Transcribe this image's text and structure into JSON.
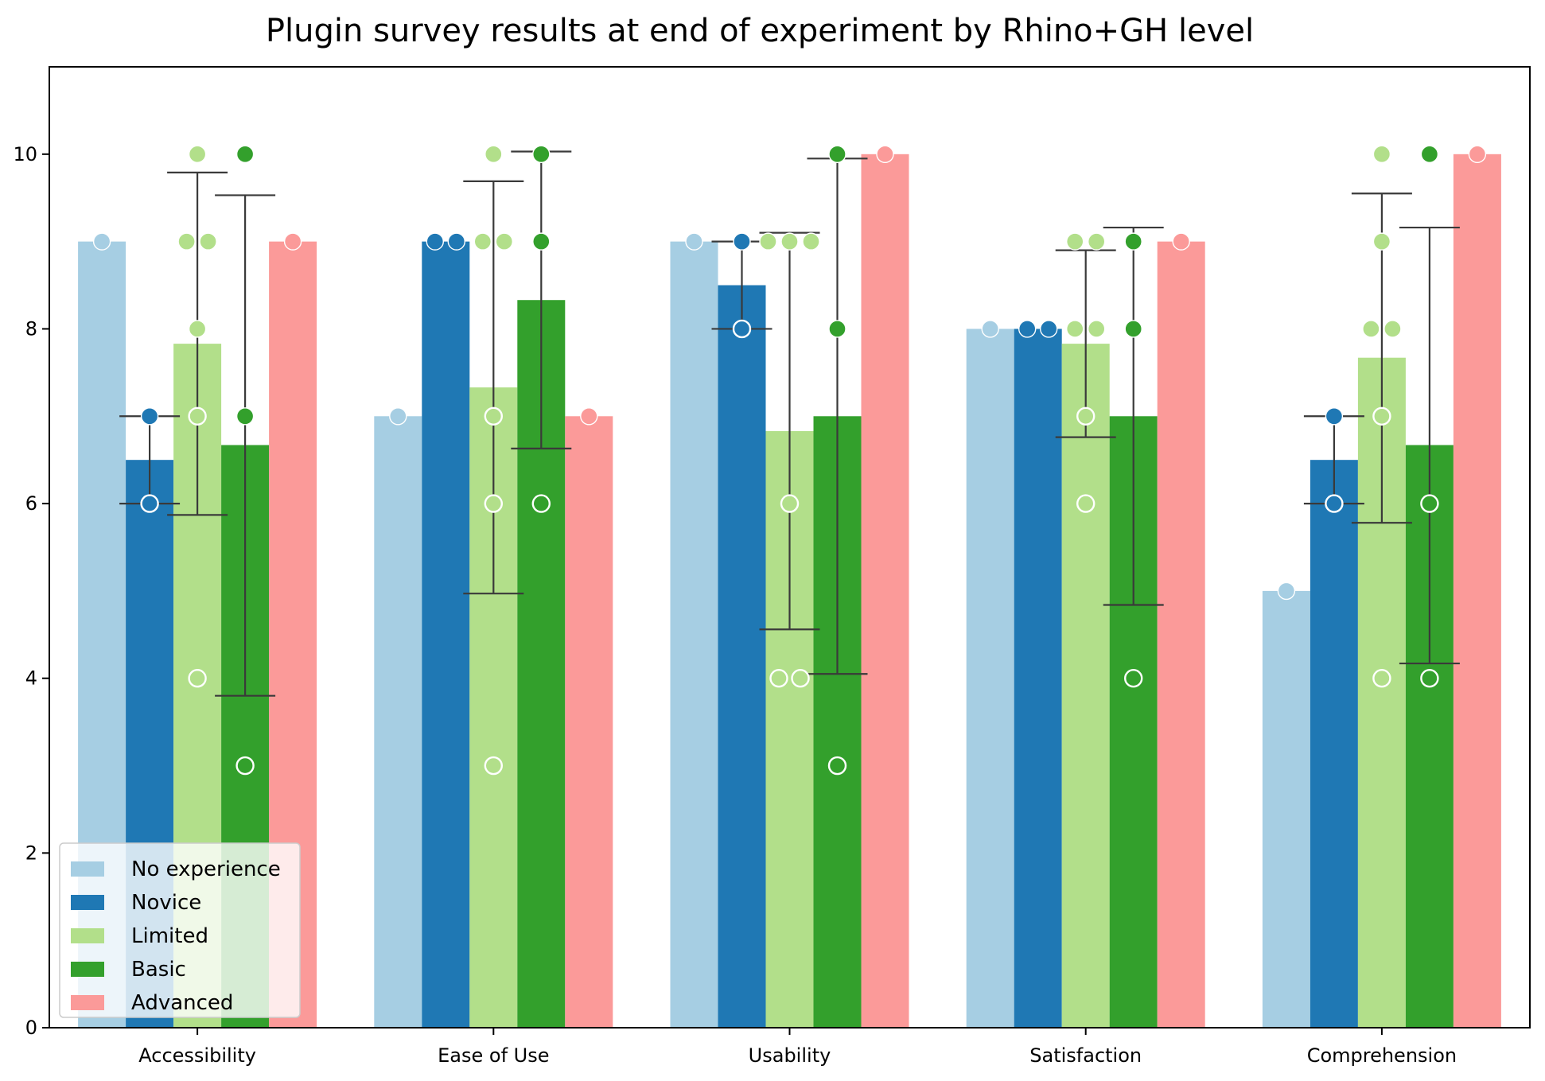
{
  "chart_data": {
    "type": "bar",
    "title": "Plugin survey results at end of experiment by Rhino+GH level",
    "xlabel": "",
    "ylabel": "",
    "ylim": [
      0,
      11
    ],
    "yticks": [
      0,
      2,
      4,
      6,
      8,
      10
    ],
    "grid": false,
    "legend_position": "lower-left",
    "categories": [
      "Accessibility",
      "Ease of Use",
      "Usability",
      "Satisfaction",
      "Comprehension"
    ],
    "series": [
      {
        "name": "No experience",
        "color": "#a6cee3",
        "values": [
          9,
          7,
          9,
          8,
          5
        ],
        "error_bars": [
          null,
          null,
          null,
          null,
          null
        ],
        "points": [
          [
            9
          ],
          [
            7
          ],
          [
            9
          ],
          [
            8
          ],
          [
            5
          ]
        ]
      },
      {
        "name": "Novice",
        "color": "#1f78b4",
        "values": [
          6.5,
          9,
          8.5,
          8,
          6.5
        ],
        "error_bars": [
          [
            6,
            7
          ],
          null,
          [
            8,
            9
          ],
          null,
          [
            6,
            7
          ]
        ],
        "points": [
          [
            7,
            6
          ],
          [
            9,
            9
          ],
          [
            9,
            8
          ],
          [
            8,
            8
          ],
          [
            7,
            6
          ]
        ]
      },
      {
        "name": "Limited",
        "color": "#b2df8a",
        "values": [
          7.83,
          7.33,
          6.83,
          7.83,
          7.67
        ],
        "error_bars": [
          [
            5.87,
            9.79
          ],
          [
            4.97,
            9.69
          ],
          [
            4.56,
            9.1
          ],
          [
            6.76,
            8.9
          ],
          [
            5.78,
            9.55
          ]
        ],
        "points": [
          [
            10,
            9,
            9,
            8,
            7,
            4
          ],
          [
            10,
            9,
            9,
            7,
            6,
            3
          ],
          [
            9,
            9,
            9,
            6,
            4,
            4
          ],
          [
            9,
            9,
            8,
            8,
            7,
            6
          ],
          [
            10,
            9,
            8,
            8,
            7,
            4
          ]
        ]
      },
      {
        "name": "Basic",
        "color": "#33a02c",
        "values": [
          6.67,
          8.33,
          7,
          7,
          6.67
        ],
        "error_bars": [
          [
            3.8,
            9.53
          ],
          [
            6.63,
            10.03
          ],
          [
            4.05,
            9.95
          ],
          [
            4.84,
            9.16
          ],
          [
            4.17,
            9.16
          ]
        ],
        "points": [
          [
            10,
            7,
            3
          ],
          [
            10,
            9,
            6
          ],
          [
            10,
            8,
            3
          ],
          [
            9,
            8,
            4
          ],
          [
            10,
            6,
            4
          ]
        ]
      },
      {
        "name": "Advanced",
        "color": "#fb9a99",
        "values": [
          9,
          7,
          10,
          9,
          10
        ],
        "error_bars": [
          null,
          null,
          null,
          null,
          null
        ],
        "points": [
          [
            9
          ],
          [
            7
          ],
          [
            10
          ],
          [
            9
          ],
          [
            10
          ]
        ]
      }
    ]
  }
}
